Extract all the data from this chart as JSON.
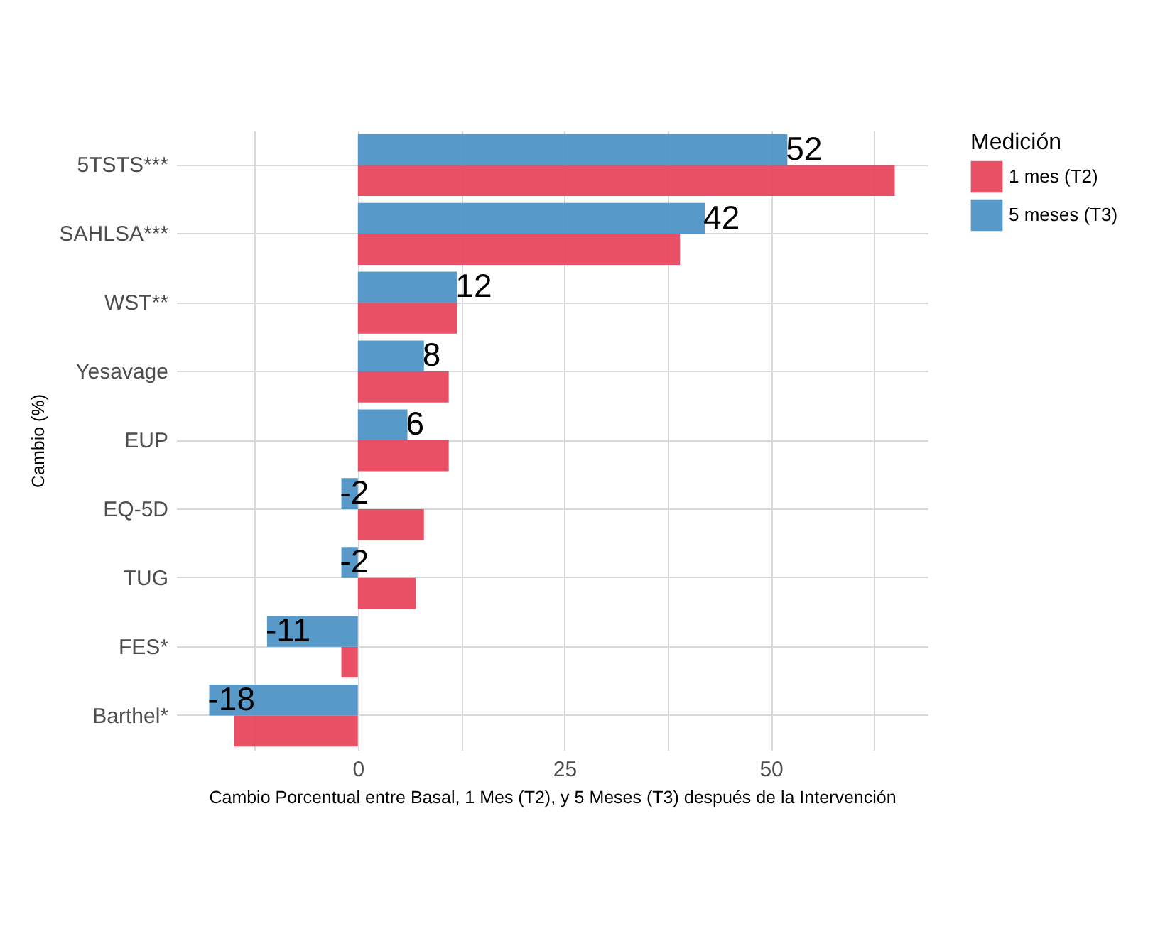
{
  "chart_data": {
    "type": "bar",
    "orientation": "horizontal",
    "categories": [
      "5TSTS***",
      "SAHLSA***",
      "WST**",
      "Yesavage",
      "EUP",
      "EQ-5D",
      "TUG",
      "FES*",
      "Barthel*"
    ],
    "series": [
      {
        "name": "1 mes (T2)",
        "color": "#e8475d",
        "values": [
          65,
          39,
          12,
          11,
          11,
          8,
          7,
          -2,
          -15
        ]
      },
      {
        "name": "5 meses (T3)",
        "color": "#4e95c7",
        "values": [
          52,
          42,
          12,
          8,
          6,
          -2,
          -2,
          -11,
          -18
        ],
        "value_labels": [
          "52",
          "42",
          "12",
          "8",
          "6",
          "-2",
          "-2",
          "-11",
          "-18"
        ]
      }
    ],
    "xlim": [
      -22,
      69
    ],
    "xticks": [
      {
        "value": -12.5,
        "label": null
      },
      0,
      {
        "value": 12.5,
        "label": null
      },
      25,
      {
        "value": 37.5,
        "label": null
      },
      50,
      {
        "value": 62.5,
        "label": null
      }
    ],
    "xlabel": "Cambio Porcentual entre Basal, 1 Mes (T2), y 5 Meses (T3) después de la Intervención",
    "ylabel": "Cambio (%)",
    "legend_title": "Medición",
    "legend": "right",
    "grid": true
  }
}
